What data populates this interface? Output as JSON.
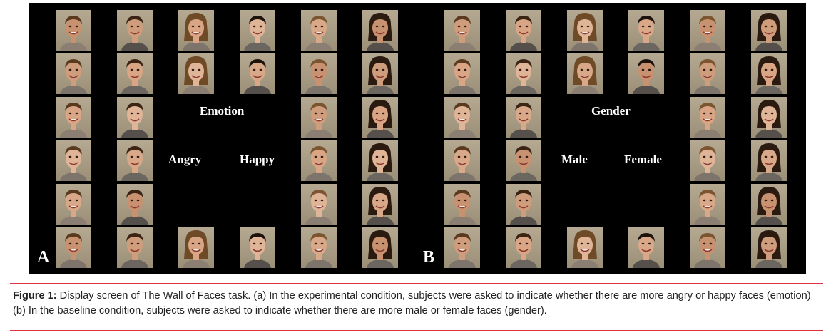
{
  "figure": {
    "panel_a": {
      "letter": "A",
      "category": "Emotion",
      "option_left": "Angry",
      "option_right": "Happy"
    },
    "panel_b": {
      "letter": "B",
      "category": "Gender",
      "option_left": "Male",
      "option_right": "Female"
    }
  },
  "caption": {
    "label": "Figure 1:",
    "text": " Display screen of The Wall of Faces task. (a) In the experimental condition, subjects were asked to indicate whether there are more angry or happy faces (emotion) (b) In the baseline condition, subjects were asked to indicate whether there are more male or female faces (gender)."
  },
  "colors": {
    "background": "#000000",
    "rule": "#e03240",
    "text": "#222222"
  }
}
